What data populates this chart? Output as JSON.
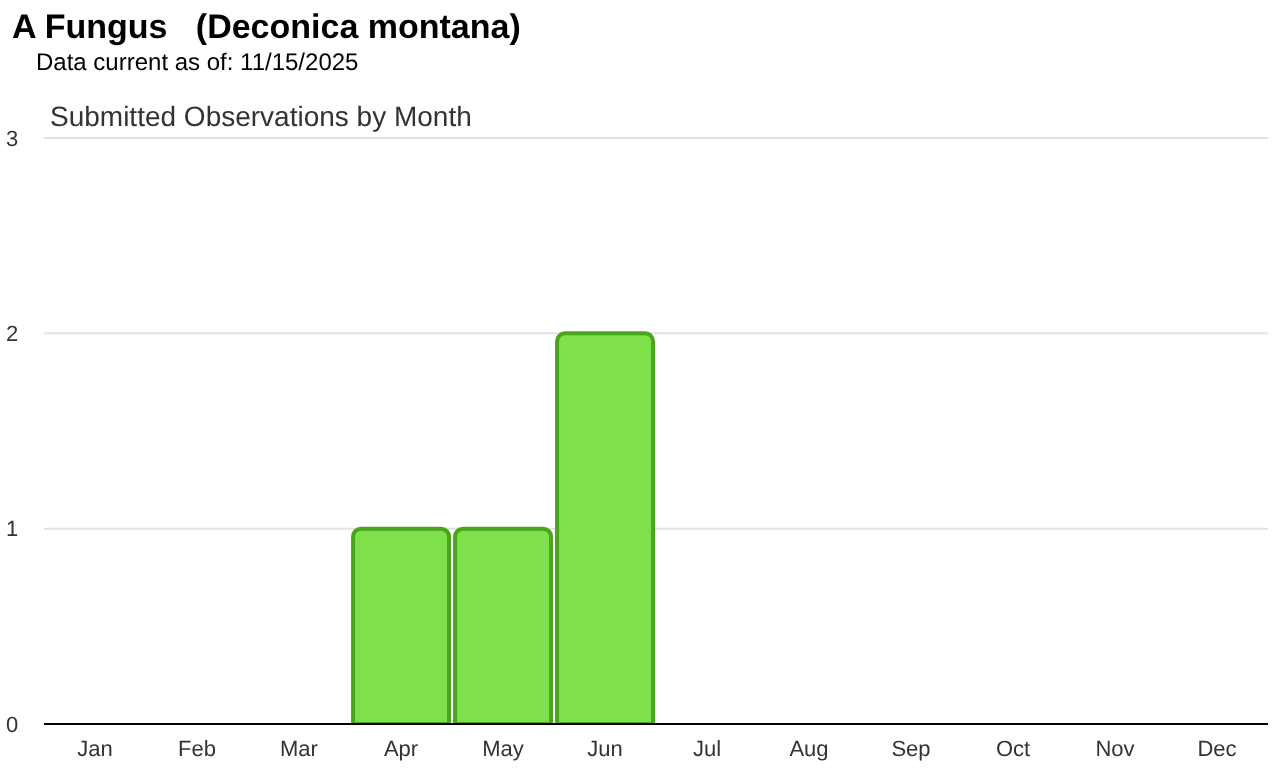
{
  "chart_data": {
    "type": "bar",
    "title": "A Fungus   (Deconica montana)",
    "subtitle": "Data current as of: 11/15/2025",
    "annotations": [
      "Submitted Observations by Month"
    ],
    "categories": [
      "Jan",
      "Feb",
      "Mar",
      "Apr",
      "May",
      "Jun",
      "Jul",
      "Aug",
      "Sep",
      "Oct",
      "Nov",
      "Dec"
    ],
    "values": [
      0,
      0,
      0,
      1,
      1,
      2,
      0,
      0,
      0,
      0,
      0,
      0
    ],
    "color": "#7ee04a",
    "ylim": [
      0,
      3
    ],
    "yticks": [
      0,
      1,
      2,
      3
    ],
    "grid": "y"
  }
}
